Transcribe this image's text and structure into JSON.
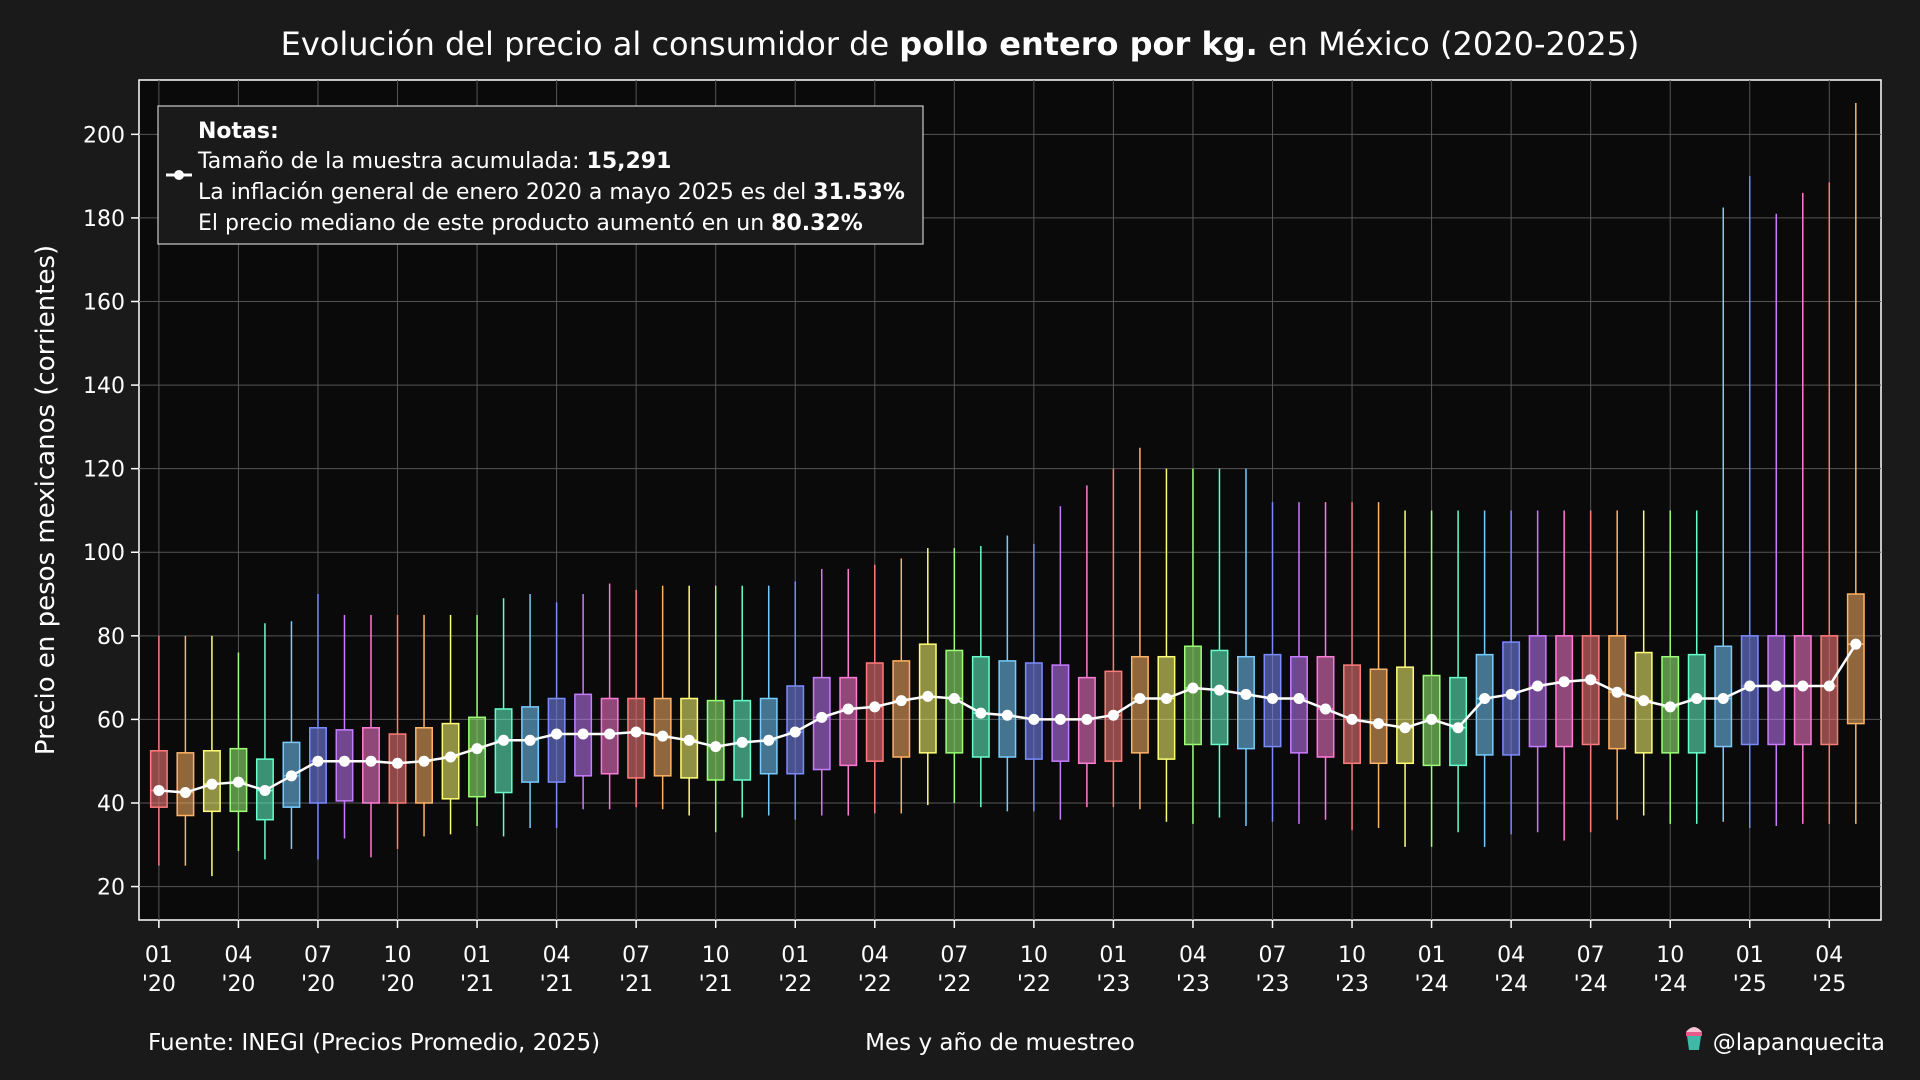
{
  "chart_data": {
    "type": "box",
    "title_parts": [
      {
        "text": "Evolución del precio al consumidor de ",
        "bold": false
      },
      {
        "text": "pollo entero por kg.",
        "bold": true
      },
      {
        "text": " en México (2020-2025)",
        "bold": false
      }
    ],
    "xlabel": "Mes y año de muestreo",
    "ylabel": "Precio en pesos mexicanos (corrientes)",
    "ylim": [
      12,
      213
    ],
    "yticks": [
      20,
      40,
      60,
      80,
      100,
      120,
      140,
      160,
      180,
      200
    ],
    "grid": true,
    "x_tick_labels": [
      {
        "index": 0,
        "month": "01",
        "year": "'20"
      },
      {
        "index": 3,
        "month": "04",
        "year": "'20"
      },
      {
        "index": 6,
        "month": "07",
        "year": "'20"
      },
      {
        "index": 9,
        "month": "10",
        "year": "'20"
      },
      {
        "index": 12,
        "month": "01",
        "year": "'21"
      },
      {
        "index": 15,
        "month": "04",
        "year": "'21"
      },
      {
        "index": 18,
        "month": "07",
        "year": "'21"
      },
      {
        "index": 21,
        "month": "10",
        "year": "'21"
      },
      {
        "index": 24,
        "month": "01",
        "year": "'22"
      },
      {
        "index": 27,
        "month": "04",
        "year": "'22"
      },
      {
        "index": 30,
        "month": "07",
        "year": "'22"
      },
      {
        "index": 33,
        "month": "10",
        "year": "'22"
      },
      {
        "index": 36,
        "month": "01",
        "year": "'23"
      },
      {
        "index": 39,
        "month": "04",
        "year": "'23"
      },
      {
        "index": 42,
        "month": "07",
        "year": "'23"
      },
      {
        "index": 45,
        "month": "10",
        "year": "'23"
      },
      {
        "index": 48,
        "month": "01",
        "year": "'24"
      },
      {
        "index": 51,
        "month": "04",
        "year": "'24"
      },
      {
        "index": 54,
        "month": "07",
        "year": "'24"
      },
      {
        "index": 57,
        "month": "10",
        "year": "'24"
      },
      {
        "index": 60,
        "month": "01",
        "year": "'25"
      },
      {
        "index": 63,
        "month": "04",
        "year": "'25"
      }
    ],
    "palette": [
      "#ff7b7b",
      "#ffb366",
      "#ffff77",
      "#9cff77",
      "#66ffcc",
      "#77ccff",
      "#7b8bff",
      "#c77bff",
      "#ff7bd6"
    ],
    "series": [
      {
        "name": "",
        "color": "#ffffff",
        "boxes": [
          {
            "whislo": 25,
            "q1": 39,
            "med": 43,
            "q3": 52.5,
            "whishi": 80
          },
          {
            "whislo": 25,
            "q1": 37,
            "med": 42.5,
            "q3": 52,
            "whishi": 80
          },
          {
            "whislo": 22.5,
            "q1": 38,
            "med": 44.5,
            "q3": 52.5,
            "whishi": 80
          },
          {
            "whislo": 28.5,
            "q1": 38,
            "med": 45,
            "q3": 53,
            "whishi": 76
          },
          {
            "whislo": 26.5,
            "q1": 36,
            "med": 43,
            "q3": 50.5,
            "whishi": 83
          },
          {
            "whislo": 29,
            "q1": 39,
            "med": 46.5,
            "q3": 54.5,
            "whishi": 83.5
          },
          {
            "whislo": 26.5,
            "q1": 40,
            "med": 50,
            "q3": 58,
            "whishi": 90
          },
          {
            "whislo": 31.5,
            "q1": 40.5,
            "med": 50,
            "q3": 57.5,
            "whishi": 85
          },
          {
            "whislo": 27,
            "q1": 40,
            "med": 50,
            "q3": 58,
            "whishi": 85
          },
          {
            "whislo": 29,
            "q1": 40,
            "med": 49.5,
            "q3": 56.5,
            "whishi": 85
          },
          {
            "whislo": 32,
            "q1": 40,
            "med": 50,
            "q3": 58,
            "whishi": 85
          },
          {
            "whislo": 32.5,
            "q1": 41,
            "med": 51,
            "q3": 59,
            "whishi": 85
          },
          {
            "whislo": 34.5,
            "q1": 41.5,
            "med": 53,
            "q3": 60.5,
            "whishi": 85
          },
          {
            "whislo": 32,
            "q1": 42.5,
            "med": 55,
            "q3": 62.5,
            "whishi": 89
          },
          {
            "whislo": 34,
            "q1": 45,
            "med": 55,
            "q3": 63,
            "whishi": 90
          },
          {
            "whislo": 34,
            "q1": 45,
            "med": 56.5,
            "q3": 65,
            "whishi": 88
          },
          {
            "whislo": 38.5,
            "q1": 46.5,
            "med": 56.5,
            "q3": 66,
            "whishi": 90
          },
          {
            "whislo": 38.5,
            "q1": 47,
            "med": 56.5,
            "q3": 65,
            "whishi": 92.5
          },
          {
            "whislo": 39,
            "q1": 46,
            "med": 57,
            "q3": 65,
            "whishi": 91
          },
          {
            "whislo": 38.5,
            "q1": 46.5,
            "med": 56,
            "q3": 65,
            "whishi": 92
          },
          {
            "whislo": 37,
            "q1": 46,
            "med": 55,
            "q3": 65,
            "whishi": 92
          },
          {
            "whislo": 33,
            "q1": 45.5,
            "med": 53.5,
            "q3": 64.5,
            "whishi": 92
          },
          {
            "whislo": 36.5,
            "q1": 45.5,
            "med": 54.5,
            "q3": 64.5,
            "whishi": 92
          },
          {
            "whislo": 37,
            "q1": 47,
            "med": 55,
            "q3": 65,
            "whishi": 92
          },
          {
            "whislo": 36,
            "q1": 47,
            "med": 57,
            "q3": 68,
            "whishi": 93
          },
          {
            "whislo": 37,
            "q1": 48,
            "med": 60.5,
            "q3": 70,
            "whishi": 96
          },
          {
            "whislo": 37,
            "q1": 49,
            "med": 62.5,
            "q3": 70,
            "whishi": 96
          },
          {
            "whislo": 37.5,
            "q1": 50,
            "med": 63,
            "q3": 73.5,
            "whishi": 97
          },
          {
            "whislo": 37.5,
            "q1": 51,
            "med": 64.5,
            "q3": 74,
            "whishi": 98.5
          },
          {
            "whislo": 39.5,
            "q1": 52,
            "med": 65.5,
            "q3": 78,
            "whishi": 101
          },
          {
            "whislo": 40,
            "q1": 52,
            "med": 65,
            "q3": 76.5,
            "whishi": 101
          },
          {
            "whislo": 39,
            "q1": 51,
            "med": 61.5,
            "q3": 75,
            "whishi": 101.5
          },
          {
            "whislo": 38,
            "q1": 51,
            "med": 61,
            "q3": 74,
            "whishi": 104
          },
          {
            "whislo": 38,
            "q1": 50.5,
            "med": 60,
            "q3": 73.5,
            "whishi": 102
          },
          {
            "whislo": 36,
            "q1": 50,
            "med": 60,
            "q3": 73,
            "whishi": 111
          },
          {
            "whislo": 39,
            "q1": 49.5,
            "med": 60,
            "q3": 70,
            "whishi": 116
          },
          {
            "whislo": 39,
            "q1": 50,
            "med": 61,
            "q3": 71.5,
            "whishi": 120
          },
          {
            "whislo": 38.5,
            "q1": 52,
            "med": 65,
            "q3": 75,
            "whishi": 125
          },
          {
            "whislo": 35.5,
            "q1": 50.5,
            "med": 65,
            "q3": 75,
            "whishi": 120
          },
          {
            "whislo": 35,
            "q1": 54,
            "med": 67.5,
            "q3": 77.5,
            "whishi": 120
          },
          {
            "whislo": 36.5,
            "q1": 54,
            "med": 67,
            "q3": 76.5,
            "whishi": 120
          },
          {
            "whislo": 34.5,
            "q1": 53,
            "med": 66,
            "q3": 75,
            "whishi": 120
          },
          {
            "whislo": 35.5,
            "q1": 53.5,
            "med": 65,
            "q3": 75.5,
            "whishi": 112
          },
          {
            "whislo": 35,
            "q1": 52,
            "med": 65,
            "q3": 75,
            "whishi": 112
          },
          {
            "whislo": 36,
            "q1": 51,
            "med": 62.5,
            "q3": 75,
            "whishi": 112
          },
          {
            "whislo": 33.5,
            "q1": 49.5,
            "med": 60,
            "q3": 73,
            "whishi": 112
          },
          {
            "whislo": 34,
            "q1": 49.5,
            "med": 59,
            "q3": 72,
            "whishi": 112
          },
          {
            "whislo": 29.5,
            "q1": 49.5,
            "med": 58,
            "q3": 72.5,
            "whishi": 110
          },
          {
            "whislo": 29.5,
            "q1": 49,
            "med": 60,
            "q3": 70.5,
            "whishi": 110
          },
          {
            "whislo": 33,
            "q1": 49,
            "med": 58,
            "q3": 70,
            "whishi": 110
          },
          {
            "whislo": 29.5,
            "q1": 51.5,
            "med": 65,
            "q3": 75.5,
            "whishi": 110
          },
          {
            "whislo": 32.5,
            "q1": 51.5,
            "med": 66,
            "q3": 78.5,
            "whishi": 110
          },
          {
            "whislo": 33,
            "q1": 53.5,
            "med": 68,
            "q3": 80,
            "whishi": 110
          },
          {
            "whislo": 31,
            "q1": 53.5,
            "med": 69,
            "q3": 80,
            "whishi": 110
          },
          {
            "whislo": 33,
            "q1": 54,
            "med": 69.5,
            "q3": 80,
            "whishi": 110
          },
          {
            "whislo": 36,
            "q1": 53,
            "med": 66.5,
            "q3": 80,
            "whishi": 110
          },
          {
            "whislo": 37,
            "q1": 52,
            "med": 64.5,
            "q3": 76,
            "whishi": 110
          },
          {
            "whislo": 35,
            "q1": 52,
            "med": 63,
            "q3": 75,
            "whishi": 110
          },
          {
            "whislo": 35,
            "q1": 52,
            "med": 65,
            "q3": 75.5,
            "whishi": 110
          },
          {
            "whislo": 35.5,
            "q1": 53.5,
            "med": 65,
            "q3": 77.5,
            "whishi": 182.5
          },
          {
            "whislo": 34,
            "q1": 54,
            "med": 68,
            "q3": 80,
            "whishi": 190
          },
          {
            "whislo": 34.5,
            "q1": 54,
            "med": 68,
            "q3": 80,
            "whishi": 181
          },
          {
            "whislo": 35,
            "q1": 54,
            "med": 68,
            "q3": 80,
            "whishi": 186
          },
          {
            "whislo": 35,
            "q1": 54,
            "med": 68,
            "q3": 80,
            "whishi": 188.5
          },
          {
            "whislo": 35,
            "q1": 59,
            "med": 78,
            "q3": 90,
            "whishi": 207.5
          }
        ]
      }
    ],
    "legend": {
      "placement": "top-left",
      "heading": "Notas:",
      "lines": [
        [
          {
            "text": "Tamaño de la muestra acumulada: ",
            "bold": false
          },
          {
            "text": "15,291",
            "bold": true
          }
        ],
        [
          {
            "text": "La inflación general de enero 2020 a mayo 2025 es del ",
            "bold": false
          },
          {
            "text": "31.53%",
            "bold": true
          }
        ],
        [
          {
            "text": "El precio mediano de este producto aumentó en un ",
            "bold": false
          },
          {
            "text": "80.32%",
            "bold": true
          }
        ]
      ]
    },
    "source": "Fuente: INEGI (Precios Promedio, 2025)",
    "credit": "@lapanquecita",
    "credit_icon": "cupcake-icon"
  }
}
